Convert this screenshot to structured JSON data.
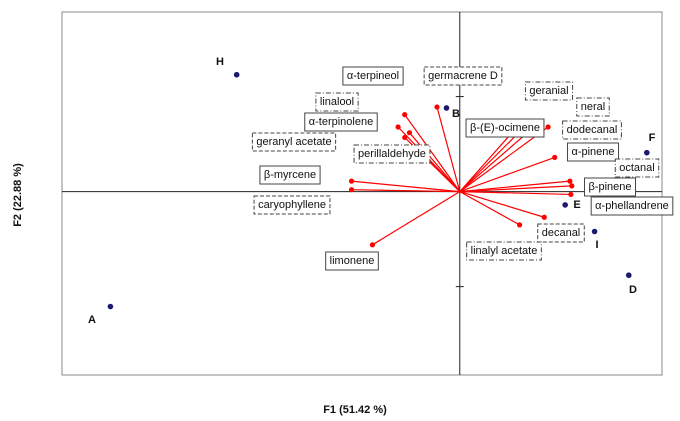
{
  "chart_data": {
    "type": "biplot",
    "xlabel": "F1 (51.42 %)",
    "ylabel": "F2 (22.88 %)",
    "xlim": [
      -4.19,
      2.13
    ],
    "ylim": [
      -1.93,
      1.89
    ],
    "yticks": [
      -1,
      1
    ],
    "points": {
      "color": "#1a1a6e",
      "labels": [
        "H",
        "A",
        "B",
        "F",
        "E",
        "I",
        "D"
      ],
      "x": [
        -2.35,
        -3.68,
        -0.14,
        1.97,
        1.11,
        1.42,
        1.78
      ],
      "y": [
        1.23,
        -1.21,
        0.88,
        0.41,
        -0.14,
        -0.42,
        -0.88
      ]
    },
    "vectors": {
      "color": "#ff0000",
      "labels": [
        "α-terpineol",
        "germacrene D",
        "linalool",
        "α-terpinolene",
        "geranyl acetate",
        "perillaldehyde",
        "β-myrcene",
        "caryophyllene",
        "limonene",
        "geranial",
        "neral",
        "β-(E)-ocimene",
        "dodecanal",
        "α-pinene",
        "octanal",
        "β-pinene",
        "α-phellandrene",
        "decanal",
        "linalyl acetate"
      ],
      "x": [
        -0.58,
        -0.24,
        -0.65,
        -0.53,
        -0.58,
        -0.44,
        -1.14,
        -1.14,
        -0.92,
        0.74,
        0.85,
        0.63,
        0.93,
        1.0,
        1.16,
        1.18,
        1.17,
        0.89,
        0.63
      ],
      "y": [
        0.81,
        0.89,
        0.68,
        0.62,
        0.57,
        0.44,
        0.11,
        0.02,
        -0.56,
        0.74,
        0.74,
        0.71,
        0.68,
        0.36,
        0.11,
        0.06,
        -0.03,
        -0.27,
        -0.35
      ]
    }
  }
}
